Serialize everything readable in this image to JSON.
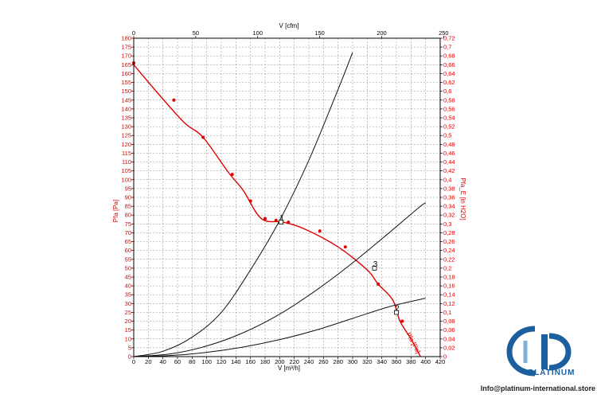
{
  "chart_data": {
    "type": "line",
    "x_bottom": {
      "label": "V [m³/h]",
      "min": 0,
      "max": 420,
      "ticks": [
        0,
        20,
        40,
        60,
        80,
        100,
        120,
        140,
        160,
        180,
        200,
        220,
        240,
        260,
        280,
        300,
        320,
        340,
        360,
        380,
        400,
        420
      ]
    },
    "x_top": {
      "label": "V [cfm]",
      "min": 0,
      "max": 247.2,
      "ticks": [
        0,
        50,
        100,
        150,
        200,
        250
      ]
    },
    "y_left": {
      "label": "Pfa [Pa]",
      "min": 0,
      "max": 180,
      "step": 5
    },
    "y_right": {
      "label": "Pfa_E [in H2O]",
      "min": 0,
      "max": 0.72,
      "step": 0.02,
      "color": "#e00000"
    },
    "grid": true,
    "series": [
      {
        "name": "Pfa [Pa]",
        "color": "#e00000",
        "x": [
          0,
          35,
          70,
          95,
          130,
          150,
          175,
          205,
          235,
          280,
          320,
          335,
          355,
          365,
          380,
          393
        ],
        "y": [
          165,
          148,
          132,
          124,
          104,
          94,
          78,
          76,
          72,
          62,
          49,
          41,
          32,
          20,
          10,
          0
        ],
        "markers_x": [
          0,
          55,
          95,
          135,
          160,
          180,
          195,
          212,
          255,
          290,
          335,
          368
        ],
        "markers_y": [
          166,
          145,
          124,
          103,
          88,
          78,
          77,
          76,
          71,
          62,
          41,
          20
        ],
        "curve_label": "Pfa [Pa]"
      },
      {
        "name": "",
        "color": "#111111",
        "x": [
          0,
          40,
          80,
          120,
          160,
          200,
          240,
          280,
          300,
          320
        ],
        "y": [
          0,
          3,
          11,
          25,
          49,
          77,
          111,
          151,
          172,
          166
        ],
        "skip_last": true
      },
      {
        "name": "",
        "color": "#111111",
        "x": [
          0,
          50,
          100,
          150,
          200,
          250,
          300,
          350,
          390,
          400
        ],
        "y": [
          0,
          1.5,
          6,
          13.5,
          24,
          37.5,
          53,
          70,
          84,
          87
        ]
      },
      {
        "name": "",
        "color": "#111111",
        "x": [
          0,
          50,
          100,
          150,
          200,
          250,
          300,
          350,
          400
        ],
        "y": [
          0,
          0.6,
          2.4,
          5.4,
          9.6,
          15,
          21.6,
          28.2,
          33
        ]
      }
    ],
    "operating_points": [
      {
        "label": "1",
        "x": 202,
        "y": 76
      },
      {
        "label": "3",
        "x": 330,
        "y": 50
      },
      {
        "label": "2",
        "x": 360,
        "y": 25
      }
    ]
  },
  "branding": {
    "logo_text": "PLATINUM",
    "footer_email": "Info@platinum-international.store"
  }
}
